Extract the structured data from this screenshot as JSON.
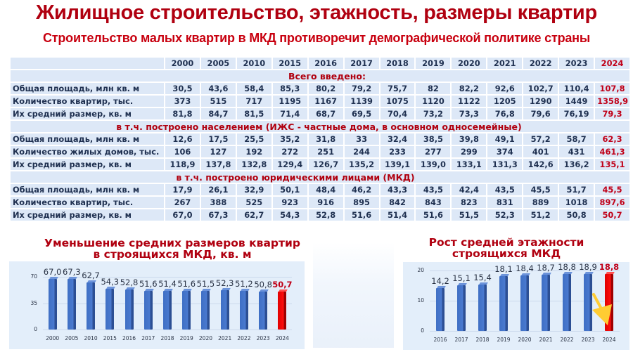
{
  "header": {
    "title": "Жилищное строительство, этажность, размеры квартир",
    "subtitle": "Строительство малых квартир в МКД противоречит демографической политике страны"
  },
  "table": {
    "years": [
      "2000",
      "2005",
      "2010",
      "2015",
      "2016",
      "2017",
      "2018",
      "2019",
      "2020",
      "2021",
      "2022",
      "2023",
      "2024"
    ],
    "sections": [
      {
        "title": "Всего введено:",
        "rows": [
          {
            "label": "Общая площадь, млн кв. м",
            "values": [
              "30,5",
              "43,6",
              "58,4",
              "85,3",
              "80,2",
              "79,2",
              "75,7",
              "82",
              "82,2",
              "92,6",
              "102,7",
              "110,4",
              "107,8"
            ]
          },
          {
            "label": "Количество квартир, тыс.",
            "values": [
              "373",
              "515",
              "717",
              "1195",
              "1167",
              "1139",
              "1075",
              "1120",
              "1122",
              "1205",
              "1290",
              "1449",
              "1358,9"
            ]
          },
          {
            "label": "Их средний размер, кв. м",
            "values": [
              "81,8",
              "84,7",
              "81,5",
              "71,4",
              "68,7",
              "69,5",
              "70,4",
              "73,2",
              "73,3",
              "76,8",
              "79,6",
              "76,19",
              "79,3"
            ]
          }
        ]
      },
      {
        "title": "в т.ч. построено населением (ИЖС - частные дома, в основном односемейные)",
        "rows": [
          {
            "label": "Общая площадь, млн кв. м",
            "values": [
              "12,6",
              "17,5",
              "25,5",
              "35,2",
              "31,8",
              "33",
              "32,4",
              "38,5",
              "39,8",
              "49,1",
              "57,2",
              "58,7",
              "62,3"
            ]
          },
          {
            "label": "Количество жилых домов, тыс.",
            "values": [
              "106",
              "127",
              "192",
              "272",
              "251",
              "244",
              "233",
              "277",
              "299",
              "374",
              "401",
              "431",
              "461,3"
            ]
          },
          {
            "label": "Их средний размер, кв. м",
            "values": [
              "118,9",
              "137,8",
              "132,8",
              "129,4",
              "126,7",
              "135,2",
              "139,1",
              "139,0",
              "133,1",
              "131,3",
              "142,6",
              "136,2",
              "135,1"
            ]
          }
        ]
      },
      {
        "title": "в т.ч. построено юридическими лицами (МКД)",
        "rows": [
          {
            "label": "Общая площадь, млн кв. м",
            "values": [
              "17,9",
              "26,1",
              "32,9",
              "50,1",
              "48,4",
              "46,2",
              "43,3",
              "43,5",
              "42,4",
              "43,5",
              "45,5",
              "51,7",
              "45,5"
            ]
          },
          {
            "label": "Количество квартир, тыс.",
            "values": [
              "267",
              "388",
              "525",
              "923",
              "916",
              "895",
              "842",
              "843",
              "823",
              "831",
              "889",
              "1018",
              "897,6"
            ]
          },
          {
            "label": "Их средний размер, кв. м",
            "values": [
              "67,0",
              "67,3",
              "62,7",
              "54,3",
              "52,8",
              "51,6",
              "51,4",
              "51,6",
              "51,5",
              "52,3",
              "51,2",
              "50,8",
              "50,7"
            ]
          }
        ]
      }
    ]
  },
  "colors": {
    "title_red": "#b00010",
    "highlight_red": "#c00018",
    "bar_blue": "#4472c4",
    "bar_red": "#ff0000",
    "table_bg": "#dde8f7",
    "panel_bg": "#e3eefa",
    "arrow_yellow": "#ffcc33"
  },
  "chart_data": [
    {
      "type": "bar",
      "title": "Уменьшение средних размеров квартир в строящихся МКД, кв. м",
      "title_line1": "Уменьшение средних размеров квартир",
      "title_line2": "в строящихся МКД, кв. м",
      "categories": [
        "2000",
        "2005",
        "2010",
        "2015",
        "2016",
        "2017",
        "2018",
        "2019",
        "2020",
        "2021",
        "2022",
        "2023",
        "2024"
      ],
      "values": [
        67.0,
        67.3,
        62.7,
        54.3,
        52.8,
        51.6,
        51.4,
        51.6,
        51.5,
        52.3,
        51.2,
        50.8,
        50.7
      ],
      "labels": [
        "67,0",
        "67,3",
        "62,7",
        "54,3",
        "52,8",
        "51,6",
        "51,4",
        "51,6",
        "51,5",
        "52,3",
        "51,2",
        "50,8",
        "50,7"
      ],
      "yticks": [
        "0",
        "35",
        "70"
      ],
      "ylim": [
        0,
        70
      ],
      "highlight": "2024",
      "xlabel": "",
      "ylabel": "",
      "grid": true
    },
    {
      "type": "bar",
      "title": "Рост средней этажности строящихся МКД",
      "title_line1": "Рост средней этажности",
      "title_line2": "строящихся МКД",
      "categories": [
        "2016",
        "2017",
        "2018",
        "2019",
        "2020",
        "2021",
        "2022",
        "2023",
        "2024"
      ],
      "values": [
        14.2,
        15.1,
        15.4,
        18.1,
        18.4,
        18.7,
        18.8,
        18.9,
        18.8
      ],
      "labels": [
        "14,2",
        "15,1",
        "15,4",
        "18,1",
        "18,4",
        "18,7",
        "18,8",
        "18,9",
        "18,8"
      ],
      "yticks": [
        "0",
        "10",
        "20"
      ],
      "ylim": [
        0,
        20
      ],
      "highlight": "2024",
      "annotation": "yellow arrow pointing down at 2024 bar",
      "xlabel": "",
      "ylabel": "",
      "grid": true
    }
  ]
}
